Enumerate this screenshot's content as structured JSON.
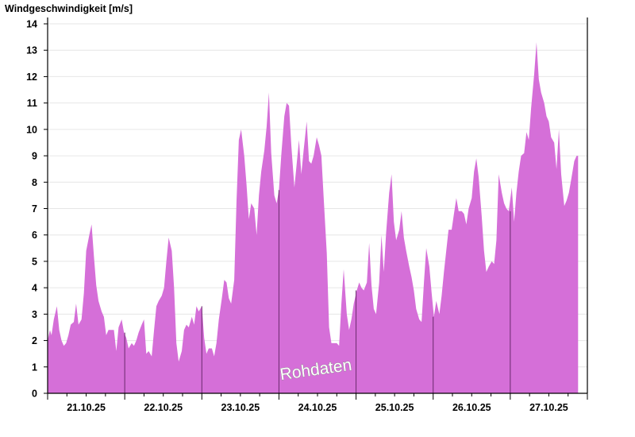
{
  "chart_data": {
    "type": "area",
    "ylabel": "Windgeschwindigkeit [m/s]",
    "ylim": [
      0,
      14
    ],
    "yticks": [
      0,
      1,
      2,
      3,
      4,
      5,
      6,
      7,
      8,
      9,
      10,
      11,
      12,
      13,
      14
    ],
    "xlim": [
      0,
      7
    ],
    "x_unit": "days from start of 21.10.25",
    "day_labels": [
      "21.10.25",
      "22.10.25",
      "23.10.25",
      "24.10.25",
      "25.10.25",
      "26.10.25",
      "27.10.25"
    ],
    "grid": "horizontal",
    "fill_color": "#d56fd8",
    "watermark": "Rohdaten",
    "series": [
      {
        "values": [
          [
            0.0,
            2.0
          ],
          [
            0.03,
            2.4
          ],
          [
            0.05,
            2.2
          ],
          [
            0.08,
            2.8
          ],
          [
            0.12,
            3.3
          ],
          [
            0.15,
            2.4
          ],
          [
            0.18,
            2.0
          ],
          [
            0.21,
            1.8
          ],
          [
            0.24,
            1.9
          ],
          [
            0.27,
            2.2
          ],
          [
            0.3,
            2.6
          ],
          [
            0.34,
            2.7
          ],
          [
            0.37,
            3.4
          ],
          [
            0.4,
            2.6
          ],
          [
            0.44,
            2.8
          ],
          [
            0.47,
            3.8
          ],
          [
            0.5,
            5.4
          ],
          [
            0.54,
            6.0
          ],
          [
            0.57,
            6.4
          ],
          [
            0.6,
            5.2
          ],
          [
            0.63,
            4.1
          ],
          [
            0.66,
            3.5
          ],
          [
            0.7,
            3.1
          ],
          [
            0.73,
            2.9
          ],
          [
            0.76,
            2.2
          ],
          [
            0.79,
            2.4
          ],
          [
            0.83,
            2.4
          ],
          [
            0.86,
            2.4
          ],
          [
            0.89,
            1.6
          ],
          [
            0.92,
            2.5
          ],
          [
            0.96,
            2.8
          ],
          [
            0.99,
            2.3
          ],
          [
            1.02,
            2.1
          ],
          [
            1.05,
            1.7
          ],
          [
            1.09,
            1.9
          ],
          [
            1.12,
            1.8
          ],
          [
            1.15,
            2.0
          ],
          [
            1.18,
            2.3
          ],
          [
            1.22,
            2.6
          ],
          [
            1.25,
            2.8
          ],
          [
            1.28,
            1.5
          ],
          [
            1.31,
            1.6
          ],
          [
            1.35,
            1.4
          ],
          [
            1.38,
            2.4
          ],
          [
            1.41,
            3.3
          ],
          [
            1.44,
            3.5
          ],
          [
            1.48,
            3.7
          ],
          [
            1.51,
            4.0
          ],
          [
            1.54,
            5.0
          ],
          [
            1.57,
            5.9
          ],
          [
            1.61,
            5.4
          ],
          [
            1.64,
            4.0
          ],
          [
            1.67,
            1.9
          ],
          [
            1.7,
            1.2
          ],
          [
            1.74,
            1.6
          ],
          [
            1.77,
            2.4
          ],
          [
            1.8,
            2.6
          ],
          [
            1.83,
            2.5
          ],
          [
            1.87,
            2.9
          ],
          [
            1.9,
            2.6
          ],
          [
            1.93,
            3.3
          ],
          [
            1.96,
            3.1
          ],
          [
            2.0,
            3.3
          ],
          [
            2.03,
            2.1
          ],
          [
            2.06,
            1.5
          ],
          [
            2.09,
            1.7
          ],
          [
            2.13,
            1.7
          ],
          [
            2.16,
            1.4
          ],
          [
            2.19,
            1.9
          ],
          [
            2.22,
            2.8
          ],
          [
            2.26,
            3.6
          ],
          [
            2.29,
            4.3
          ],
          [
            2.32,
            4.2
          ],
          [
            2.35,
            3.6
          ],
          [
            2.38,
            3.4
          ],
          [
            2.42,
            4.3
          ],
          [
            2.45,
            7.3
          ],
          [
            2.48,
            9.6
          ],
          [
            2.51,
            10.0
          ],
          [
            2.55,
            9.0
          ],
          [
            2.58,
            7.9
          ],
          [
            2.61,
            6.6
          ],
          [
            2.64,
            7.2
          ],
          [
            2.68,
            7.0
          ],
          [
            2.71,
            6.0
          ],
          [
            2.74,
            7.5
          ],
          [
            2.77,
            8.4
          ],
          [
            2.81,
            9.2
          ],
          [
            2.84,
            10.1
          ],
          [
            2.87,
            11.4
          ],
          [
            2.9,
            9.1
          ],
          [
            2.94,
            7.5
          ],
          [
            2.97,
            7.2
          ],
          [
            3.0,
            7.7
          ],
          [
            3.03,
            9.0
          ],
          [
            3.07,
            10.5
          ],
          [
            3.1,
            11.0
          ],
          [
            3.13,
            10.9
          ],
          [
            3.16,
            9.4
          ],
          [
            3.2,
            7.8
          ],
          [
            3.23,
            8.7
          ],
          [
            3.26,
            9.6
          ],
          [
            3.29,
            8.3
          ],
          [
            3.32,
            9.2
          ],
          [
            3.36,
            10.3
          ],
          [
            3.39,
            8.8
          ],
          [
            3.42,
            8.7
          ],
          [
            3.45,
            9.0
          ],
          [
            3.49,
            9.7
          ],
          [
            3.52,
            9.4
          ],
          [
            3.55,
            9.0
          ],
          [
            3.58,
            7.4
          ],
          [
            3.62,
            5.3
          ],
          [
            3.65,
            2.5
          ],
          [
            3.68,
            1.9
          ],
          [
            3.71,
            1.9
          ],
          [
            3.75,
            1.9
          ],
          [
            3.78,
            1.8
          ],
          [
            3.81,
            3.4
          ],
          [
            3.84,
            4.7
          ],
          [
            3.88,
            3.0
          ],
          [
            3.91,
            2.4
          ],
          [
            3.94,
            2.8
          ],
          [
            3.97,
            3.4
          ],
          [
            4.01,
            3.9
          ],
          [
            4.04,
            4.2
          ],
          [
            4.07,
            4.0
          ],
          [
            4.1,
            3.9
          ],
          [
            4.14,
            4.2
          ],
          [
            4.17,
            5.7
          ],
          [
            4.2,
            4.1
          ],
          [
            4.23,
            3.2
          ],
          [
            4.26,
            3.0
          ],
          [
            4.3,
            4.2
          ],
          [
            4.33,
            6.0
          ],
          [
            4.36,
            4.6
          ],
          [
            4.39,
            6.1
          ],
          [
            4.43,
            7.6
          ],
          [
            4.46,
            8.3
          ],
          [
            4.49,
            6.5
          ],
          [
            4.52,
            5.8
          ],
          [
            4.56,
            6.2
          ],
          [
            4.59,
            6.9
          ],
          [
            4.62,
            5.9
          ],
          [
            4.65,
            5.4
          ],
          [
            4.69,
            4.8
          ],
          [
            4.72,
            4.4
          ],
          [
            4.75,
            3.9
          ],
          [
            4.78,
            3.2
          ],
          [
            4.82,
            2.8
          ],
          [
            4.85,
            2.7
          ],
          [
            4.88,
            4.2
          ],
          [
            4.91,
            5.5
          ],
          [
            4.95,
            4.8
          ],
          [
            4.98,
            3.8
          ],
          [
            5.01,
            2.9
          ],
          [
            5.04,
            3.5
          ],
          [
            5.08,
            3.0
          ],
          [
            5.11,
            3.7
          ],
          [
            5.14,
            4.6
          ],
          [
            5.17,
            5.4
          ],
          [
            5.2,
            6.2
          ],
          [
            5.24,
            6.2
          ],
          [
            5.27,
            6.8
          ],
          [
            5.3,
            7.4
          ],
          [
            5.33,
            6.9
          ],
          [
            5.37,
            6.9
          ],
          [
            5.4,
            6.8
          ],
          [
            5.43,
            6.4
          ],
          [
            5.46,
            7.0
          ],
          [
            5.5,
            7.4
          ],
          [
            5.53,
            8.4
          ],
          [
            5.56,
            8.9
          ],
          [
            5.59,
            8.2
          ],
          [
            5.63,
            6.7
          ],
          [
            5.66,
            5.4
          ],
          [
            5.69,
            4.6
          ],
          [
            5.72,
            4.8
          ],
          [
            5.76,
            5.0
          ],
          [
            5.79,
            4.9
          ],
          [
            5.82,
            5.8
          ],
          [
            5.85,
            8.3
          ],
          [
            5.89,
            7.6
          ],
          [
            5.92,
            7.2
          ],
          [
            5.95,
            7.0
          ],
          [
            5.98,
            6.9
          ],
          [
            6.02,
            7.8
          ],
          [
            6.05,
            6.5
          ],
          [
            6.08,
            7.6
          ],
          [
            6.11,
            8.4
          ],
          [
            6.14,
            9.0
          ],
          [
            6.18,
            9.1
          ],
          [
            6.21,
            9.9
          ],
          [
            6.24,
            9.6
          ],
          [
            6.27,
            10.8
          ],
          [
            6.31,
            12.1
          ],
          [
            6.34,
            13.3
          ],
          [
            6.37,
            11.9
          ],
          [
            6.4,
            11.4
          ],
          [
            6.44,
            11.0
          ],
          [
            6.47,
            10.5
          ],
          [
            6.5,
            10.3
          ],
          [
            6.53,
            9.7
          ],
          [
            6.57,
            9.5
          ],
          [
            6.6,
            8.5
          ],
          [
            6.63,
            10.0
          ],
          [
            6.66,
            8.3
          ],
          [
            6.7,
            7.1
          ],
          [
            6.73,
            7.3
          ],
          [
            6.76,
            7.6
          ],
          [
            6.79,
            8.1
          ],
          [
            6.83,
            8.8
          ],
          [
            6.86,
            9.0
          ],
          [
            6.88,
            9.0
          ]
        ]
      }
    ]
  }
}
